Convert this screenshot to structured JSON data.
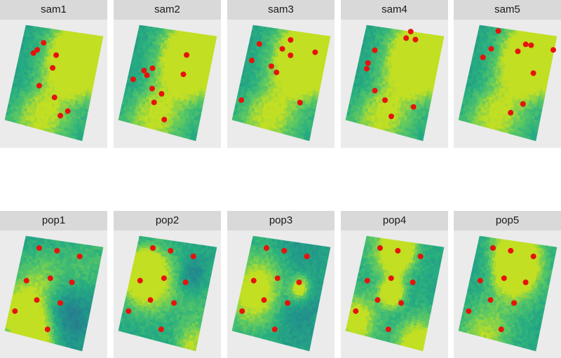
{
  "chart_data": {
    "type": "scatter",
    "title": "",
    "xlabel": "",
    "ylabel": "",
    "colors": {
      "point": "#e8120c",
      "panel_background": "#ebebeb",
      "strip_background": "#d9d9d9",
      "raster_low": "#3b528b",
      "raster_mid": "#21918c",
      "raster_high": "#c2df23"
    },
    "colormap": "viridis",
    "x_range": [
      0,
      1
    ],
    "y_range": [
      0,
      1
    ],
    "facets": [
      {
        "label": "sam1",
        "points": [
          [
            0.27,
            0.85
          ],
          [
            0.21,
            0.77
          ],
          [
            0.17,
            0.73
          ],
          [
            0.46,
            0.75
          ],
          [
            0.45,
            0.62
          ],
          [
            0.33,
            0.42
          ],
          [
            0.55,
            0.34
          ],
          [
            0.75,
            0.24
          ],
          [
            0.67,
            0.18
          ]
        ]
      },
      {
        "label": "sam2",
        "points": [
          [
            0.67,
            0.78
          ],
          [
            0.68,
            0.59
          ],
          [
            0.28,
            0.59
          ],
          [
            0.18,
            0.55
          ],
          [
            0.23,
            0.51
          ],
          [
            0.07,
            0.44
          ],
          [
            0.33,
            0.39
          ],
          [
            0.46,
            0.36
          ],
          [
            0.39,
            0.26
          ],
          [
            0.56,
            0.12
          ]
        ]
      },
      {
        "label": "sam3",
        "points": [
          [
            0.51,
            0.91
          ],
          [
            0.43,
            0.81
          ],
          [
            0.13,
            0.82
          ],
          [
            0.55,
            0.76
          ],
          [
            0.85,
            0.83
          ],
          [
            0.08,
            0.64
          ],
          [
            0.34,
            0.62
          ],
          [
            0.42,
            0.57
          ],
          [
            0.79,
            0.33
          ],
          [
            0.06,
            0.22
          ]
        ]
      },
      {
        "label": "sam4",
        "points": [
          [
            0.57,
            1.0
          ],
          [
            0.53,
            0.93
          ],
          [
            0.65,
            0.93
          ],
          [
            0.17,
            0.76
          ],
          [
            0.12,
            0.62
          ],
          [
            0.12,
            0.56
          ],
          [
            0.28,
            0.36
          ],
          [
            0.43,
            0.29
          ],
          [
            0.8,
            0.29
          ],
          [
            0.55,
            0.15
          ]
        ]
      },
      {
        "label": "sam5",
        "points": [
          [
            0.25,
            0.97
          ],
          [
            0.63,
            0.88
          ],
          [
            0.7,
            0.88
          ],
          [
            0.99,
            0.87
          ],
          [
            0.21,
            0.78
          ],
          [
            0.55,
            0.8
          ],
          [
            0.13,
            0.68
          ],
          [
            0.8,
            0.62
          ],
          [
            0.75,
            0.31
          ],
          [
            0.62,
            0.2
          ]
        ]
      },
      {
        "label": "pop1",
        "points": [
          [
            0.2,
            0.9
          ],
          [
            0.43,
            0.9
          ],
          [
            0.73,
            0.88
          ],
          [
            0.42,
            0.62
          ],
          [
            0.7,
            0.62
          ],
          [
            0.13,
            0.55
          ],
          [
            0.31,
            0.38
          ],
          [
            0.61,
            0.4
          ],
          [
            0.07,
            0.22
          ],
          [
            0.52,
            0.12
          ]
        ]
      },
      {
        "label": "pop2",
        "points": [
          [
            0.2,
            0.9
          ],
          [
            0.43,
            0.9
          ],
          [
            0.73,
            0.88
          ],
          [
            0.42,
            0.62
          ],
          [
            0.7,
            0.62
          ],
          [
            0.13,
            0.55
          ],
          [
            0.31,
            0.38
          ],
          [
            0.61,
            0.4
          ],
          [
            0.07,
            0.22
          ],
          [
            0.52,
            0.12
          ]
        ]
      },
      {
        "label": "pop3",
        "points": [
          [
            0.2,
            0.9
          ],
          [
            0.43,
            0.9
          ],
          [
            0.73,
            0.88
          ],
          [
            0.42,
            0.62
          ],
          [
            0.7,
            0.62
          ],
          [
            0.13,
            0.55
          ],
          [
            0.31,
            0.38
          ],
          [
            0.61,
            0.4
          ],
          [
            0.07,
            0.22
          ],
          [
            0.52,
            0.12
          ]
        ]
      },
      {
        "label": "pop4",
        "points": [
          [
            0.2,
            0.9
          ],
          [
            0.43,
            0.9
          ],
          [
            0.73,
            0.88
          ],
          [
            0.42,
            0.62
          ],
          [
            0.7,
            0.62
          ],
          [
            0.13,
            0.55
          ],
          [
            0.31,
            0.38
          ],
          [
            0.61,
            0.4
          ],
          [
            0.07,
            0.22
          ],
          [
            0.52,
            0.12
          ]
        ]
      },
      {
        "label": "pop5",
        "points": [
          [
            0.2,
            0.9
          ],
          [
            0.43,
            0.9
          ],
          [
            0.73,
            0.88
          ],
          [
            0.42,
            0.62
          ],
          [
            0.7,
            0.62
          ],
          [
            0.13,
            0.55
          ],
          [
            0.31,
            0.38
          ],
          [
            0.61,
            0.4
          ],
          [
            0.07,
            0.22
          ],
          [
            0.52,
            0.12
          ]
        ]
      }
    ]
  }
}
